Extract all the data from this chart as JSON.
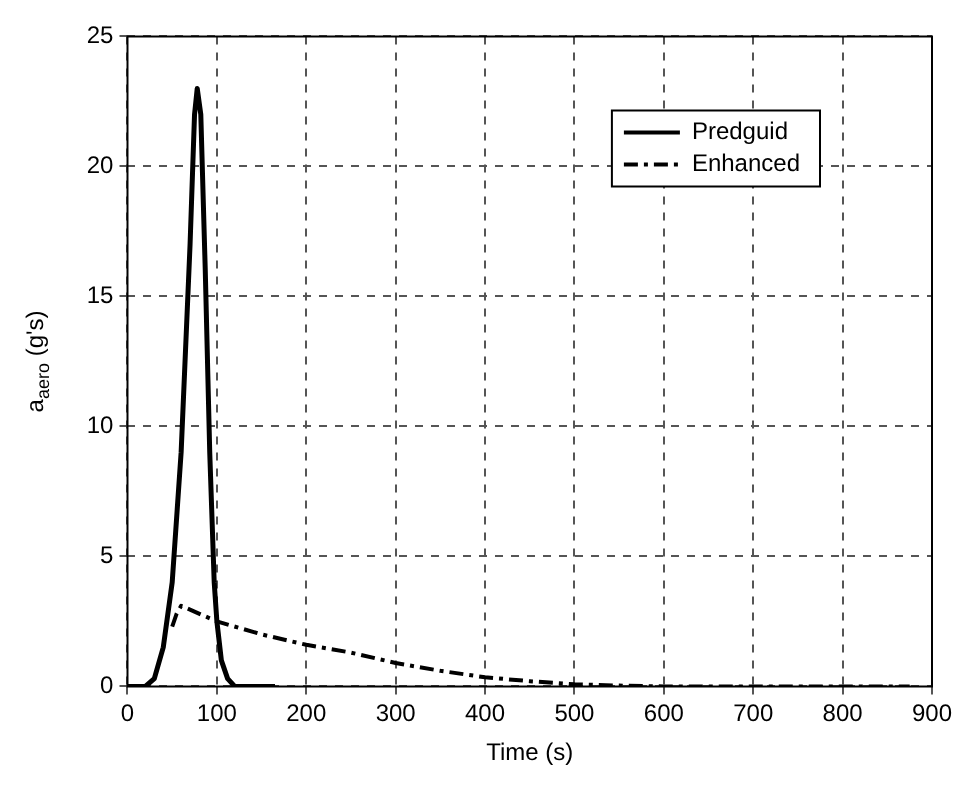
{
  "chart_data": {
    "type": "line",
    "xlabel": "Time (s)",
    "ylabel": "a$_{aero}$ (g's)",
    "xlim": [
      0,
      900
    ],
    "xticks": [
      0,
      100,
      200,
      300,
      400,
      500,
      600,
      700,
      800,
      900
    ],
    "ylim": [
      0,
      25
    ],
    "yticks": [
      0,
      5,
      10,
      15,
      20,
      25
    ],
    "grid": true,
    "legend": "top right",
    "marker": "none",
    "series": [
      {
        "name": "Predguid",
        "color": "#000000",
        "line_style": "solid",
        "x": [
          0,
          20,
          30,
          40,
          50,
          60,
          70,
          75,
          78,
          82,
          87,
          92,
          97,
          100,
          105,
          112,
          120,
          165
        ],
        "values": [
          0,
          0,
          0.3,
          1.5,
          4,
          9,
          17,
          22,
          23,
          22,
          16,
          9,
          4,
          2.5,
          1,
          0.3,
          0,
          0
        ]
      },
      {
        "name": "Enhanced",
        "color": "#000000",
        "line_style": "dashdot",
        "x": [
          50,
          55,
          60,
          100,
          150,
          200,
          250,
          300,
          350,
          400,
          450,
          500,
          550,
          600,
          700,
          800,
          875
        ],
        "values": [
          2.3,
          2.8,
          3.1,
          2.5,
          2,
          1.6,
          1.3,
          0.9,
          0.6,
          0.35,
          0.2,
          0.08,
          0.03,
          0,
          0,
          0,
          0
        ]
      }
    ]
  }
}
